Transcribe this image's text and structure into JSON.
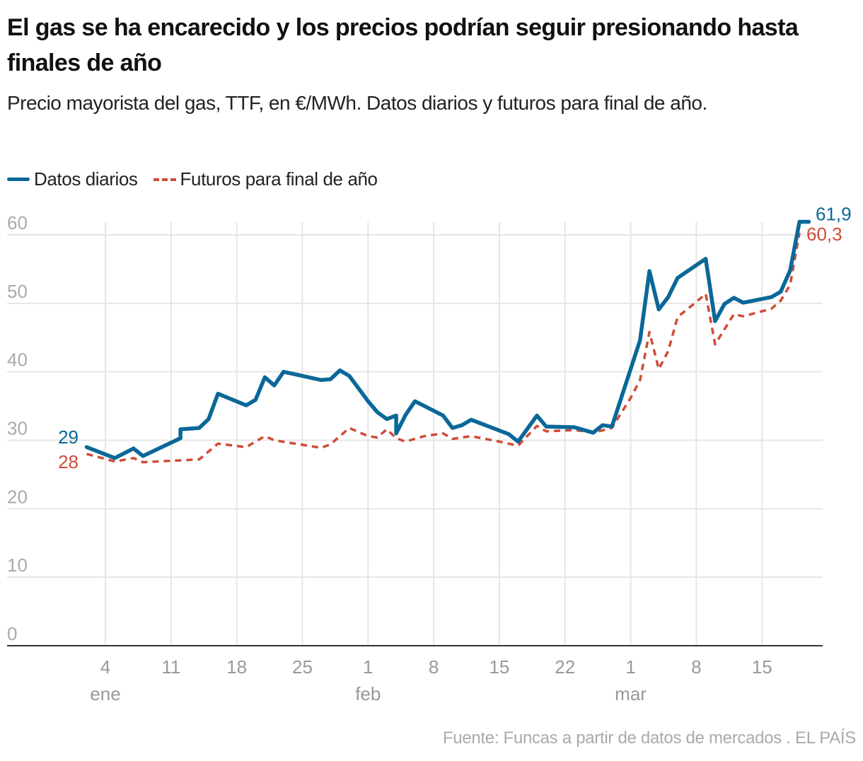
{
  "title": "El gas se ha encarecido y los precios podrían seguir presionando hasta finales de año",
  "subtitle": "Precio mayorista del gas, TTF, en €/MWh. Datos diarios y futuros para final de año.",
  "source": "Fuente: Funcas a partir de datos de mercados . EL PAÍS",
  "chart_data": {
    "type": "line",
    "legend_placement": "top-left",
    "grid": true,
    "ylim": [
      0,
      60
    ],
    "y_ticks": [
      "0",
      "10",
      "20",
      "30",
      "40",
      "50",
      "60"
    ],
    "x_ticks": [
      {
        "date": "01-04",
        "label": "4",
        "month": "ene"
      },
      {
        "date": "01-11",
        "label": "11",
        "month": ""
      },
      {
        "date": "01-18",
        "label": "18",
        "month": ""
      },
      {
        "date": "01-25",
        "label": "25",
        "month": ""
      },
      {
        "date": "02-01",
        "label": "1",
        "month": "feb"
      },
      {
        "date": "02-08",
        "label": "8",
        "month": ""
      },
      {
        "date": "02-15",
        "label": "15",
        "month": ""
      },
      {
        "date": "02-22",
        "label": "22",
        "month": ""
      },
      {
        "date": "03-01",
        "label": "1",
        "month": "mar"
      },
      {
        "date": "03-08",
        "label": "8",
        "month": ""
      },
      {
        "date": "03-15",
        "label": "15",
        "month": ""
      }
    ],
    "series": [
      {
        "name": "Datos diarios",
        "color": "#0a6898",
        "style": "solid",
        "start_label": "29",
        "end_label": "61,9",
        "points": [
          [
            "01-02",
            29.0
          ],
          [
            "01-05",
            27.4
          ],
          [
            "01-07",
            28.8
          ],
          [
            "01-08",
            27.7
          ],
          [
            "01-12",
            30.3
          ],
          [
            "01-12",
            31.6
          ],
          [
            "01-14",
            31.8
          ],
          [
            "01-15",
            33.1
          ],
          [
            "01-16",
            36.8
          ],
          [
            "01-19",
            35.1
          ],
          [
            "01-20",
            35.9
          ],
          [
            "01-21",
            39.2
          ],
          [
            "01-22",
            38.0
          ],
          [
            "01-23",
            40.0
          ],
          [
            "01-27",
            38.8
          ],
          [
            "01-28",
            38.9
          ],
          [
            "01-29",
            40.2
          ],
          [
            "01-30",
            39.4
          ],
          [
            "02-01",
            35.7
          ],
          [
            "02-02",
            34.1
          ],
          [
            "02-03",
            33.1
          ],
          [
            "02-04",
            33.6
          ],
          [
            "02-04",
            31.0
          ],
          [
            "02-05",
            33.7
          ],
          [
            "02-06",
            35.7
          ],
          [
            "02-09",
            33.6
          ],
          [
            "02-10",
            31.8
          ],
          [
            "02-11",
            32.2
          ],
          [
            "02-12",
            33.0
          ],
          [
            "02-16",
            30.9
          ],
          [
            "02-17",
            29.8
          ],
          [
            "02-19",
            33.6
          ],
          [
            "02-20",
            32.0
          ],
          [
            "02-23",
            31.9
          ],
          [
            "02-25",
            31.1
          ],
          [
            "02-26",
            32.2
          ],
          [
            "02-27",
            32.0
          ],
          [
            "03-02",
            44.6
          ],
          [
            "03-03",
            54.7
          ],
          [
            "03-04",
            49.1
          ],
          [
            "03-05",
            50.9
          ],
          [
            "03-06",
            53.7
          ],
          [
            "03-09",
            56.5
          ],
          [
            "03-10",
            47.4
          ],
          [
            "03-11",
            49.9
          ],
          [
            "03-12",
            50.8
          ],
          [
            "03-13",
            50.1
          ],
          [
            "03-16",
            50.9
          ],
          [
            "03-17",
            51.7
          ],
          [
            "03-18",
            54.8
          ],
          [
            "03-19",
            61.9
          ],
          [
            "03-20",
            61.9
          ]
        ]
      },
      {
        "name": "Futuros para final de año",
        "color": "#d04b37",
        "style": "dashed",
        "start_label": "28",
        "end_label": "60,3",
        "points": [
          [
            "01-02",
            28.0
          ],
          [
            "01-05",
            26.9
          ],
          [
            "01-07",
            27.4
          ],
          [
            "01-08",
            26.8
          ],
          [
            "01-14",
            27.2
          ],
          [
            "01-16",
            29.5
          ],
          [
            "01-19",
            29.0
          ],
          [
            "01-21",
            30.6
          ],
          [
            "01-22",
            30.0
          ],
          [
            "01-27",
            28.9
          ],
          [
            "01-28",
            29.4
          ],
          [
            "01-30",
            31.8
          ],
          [
            "02-01",
            30.6
          ],
          [
            "02-02",
            30.4
          ],
          [
            "02-03",
            31.6
          ],
          [
            "02-04",
            30.3
          ],
          [
            "02-05",
            29.8
          ],
          [
            "02-07",
            30.6
          ],
          [
            "02-09",
            31.0
          ],
          [
            "02-10",
            30.2
          ],
          [
            "02-12",
            30.6
          ],
          [
            "02-15",
            29.8
          ],
          [
            "02-17",
            29.2
          ],
          [
            "02-19",
            32.1
          ],
          [
            "02-20",
            31.3
          ],
          [
            "02-23",
            31.5
          ],
          [
            "02-25",
            31.1
          ],
          [
            "02-27",
            31.8
          ],
          [
            "03-01",
            36.2
          ],
          [
            "03-02",
            38.8
          ],
          [
            "03-03",
            45.8
          ],
          [
            "03-04",
            40.4
          ],
          [
            "03-05",
            43.0
          ],
          [
            "03-06",
            48.0
          ],
          [
            "03-08",
            50.2
          ],
          [
            "03-09",
            51.4
          ],
          [
            "03-10",
            44.0
          ],
          [
            "03-12",
            48.4
          ],
          [
            "03-13",
            48.1
          ],
          [
            "03-16",
            49.2
          ],
          [
            "03-17",
            50.4
          ],
          [
            "03-18",
            52.7
          ],
          [
            "03-19",
            60.3
          ]
        ]
      }
    ]
  }
}
